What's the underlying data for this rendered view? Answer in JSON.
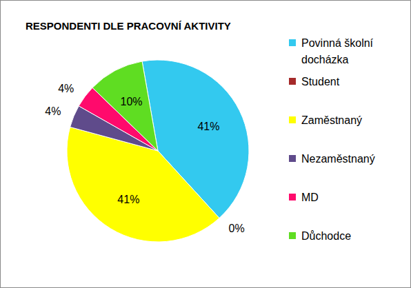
{
  "chart_data": {
    "type": "pie",
    "title": "RESPONDENTI DLE PRACOVNÍ AKTIVITY",
    "categories": [
      "Povinná školní docházka",
      "Student",
      "Zaměstnaný",
      "Nezaměstnaný",
      "MD",
      "Důchodce"
    ],
    "values": [
      41,
      0,
      41,
      4,
      4,
      10
    ],
    "value_labels": [
      "41%",
      "0%",
      "41%",
      "4%",
      "4%",
      "10%"
    ],
    "colors": [
      "#33c9ef",
      "#a52a2a",
      "#ffff00",
      "#5f4b8b",
      "#ff0a6c",
      "#5fdd22"
    ],
    "data_labels": true,
    "legend": "right"
  }
}
